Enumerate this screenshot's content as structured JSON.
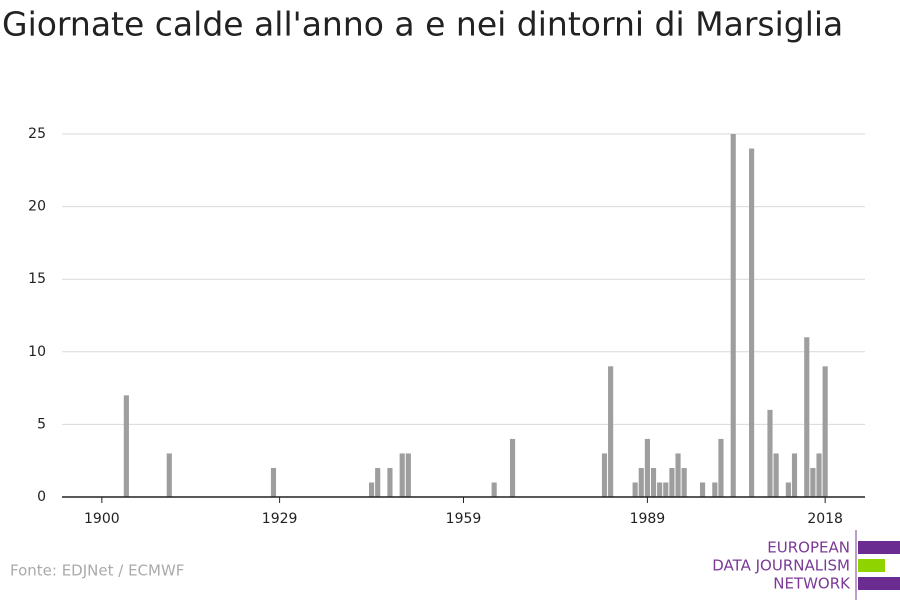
{
  "chart_data": {
    "type": "bar",
    "title": "Giornate calde all'anno a e nei dintorni di Marsiglia",
    "source": "Fonte: EDJNet / ECMWF",
    "logo": [
      "EUROPEAN",
      "DATA JOURNALISM",
      "NETWORK"
    ],
    "x": [
      1904,
      1911,
      1928,
      1944,
      1945,
      1947,
      1949,
      1950,
      1964,
      1967,
      1982,
      1983,
      1987,
      1988,
      1989,
      1990,
      1991,
      1992,
      1993,
      1994,
      1995,
      1998,
      2000,
      2001,
      2003,
      2006,
      2009,
      2010,
      2012,
      2013,
      2015,
      2016,
      2017,
      2018
    ],
    "values": [
      7,
      3,
      2,
      1,
      2,
      2,
      3,
      3,
      1,
      4,
      3,
      9,
      1,
      2,
      4,
      2,
      1,
      1,
      2,
      3,
      2,
      1,
      1,
      4,
      25,
      24,
      6,
      3,
      1,
      3,
      11,
      2,
      3,
      9
    ],
    "color": "#9e9e9e",
    "xlim": [
      1893.5,
      2024.5
    ],
    "xticks": [
      1900,
      1929,
      1959,
      1989,
      2018
    ],
    "ylim": [
      0,
      25
    ],
    "yticks": [
      0,
      5,
      10,
      15,
      20,
      25
    ],
    "grid": true
  }
}
